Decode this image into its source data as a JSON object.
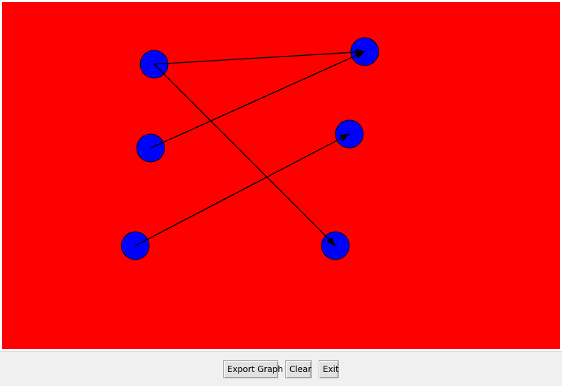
{
  "canvas": {
    "background_color": "#ff0000",
    "node_color": "#0000ff",
    "edge_color": "#000000"
  },
  "graph": {
    "nodes": [
      {
        "id": "n1"
      },
      {
        "id": "n2"
      },
      {
        "id": "n3"
      },
      {
        "id": "n4"
      },
      {
        "id": "n5"
      },
      {
        "id": "n6"
      }
    ],
    "edges": [
      {
        "from": "n1",
        "to": "n2"
      },
      {
        "from": "n1",
        "to": "n6"
      },
      {
        "from": "n3",
        "to": "n2"
      },
      {
        "from": "n5",
        "to": "n4"
      }
    ]
  },
  "buttons": {
    "export_label": "Export Graph",
    "clear_label": "Clear",
    "exit_label": "Exit"
  }
}
